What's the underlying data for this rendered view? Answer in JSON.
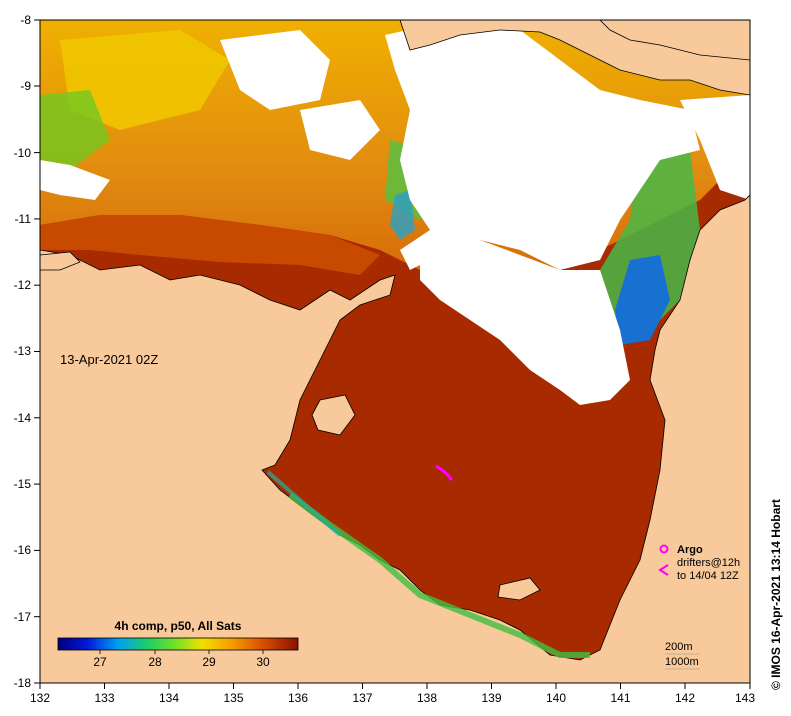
{
  "map": {
    "date_label": "13-Apr-2021 02Z",
    "credit": "© IMOS 16-Apr-2021 13:14 Hobart",
    "colors": {
      "land": "#f8c99a",
      "cloud": "#ffffff",
      "sst_warm": "#9c1a00",
      "sst_orange": "#d25a00",
      "sst_yellow": "#f0a800",
      "sst_green": "#40c040",
      "sst_blue": "#1060d0",
      "drifter": "#ff00ff"
    },
    "x_ticks": [
      "132",
      "133",
      "134",
      "135",
      "136",
      "137",
      "138",
      "139",
      "140",
      "141",
      "142",
      "143"
    ],
    "y_ticks": [
      "-8",
      "-9",
      "-10",
      "-11",
      "-12",
      "-13",
      "-14",
      "-15",
      "-16",
      "-17",
      "-18"
    ],
    "colorbar": {
      "title": "4h comp, p50, All Sats",
      "ticks": [
        "27",
        "28",
        "29",
        "30"
      ]
    },
    "legend": {
      "argo": "Argo",
      "drifters": "drifters@12h",
      "drifters_to": "to 14/04 12Z"
    },
    "depth_legend": {
      "line1": "200m",
      "line2": "1000m"
    }
  }
}
